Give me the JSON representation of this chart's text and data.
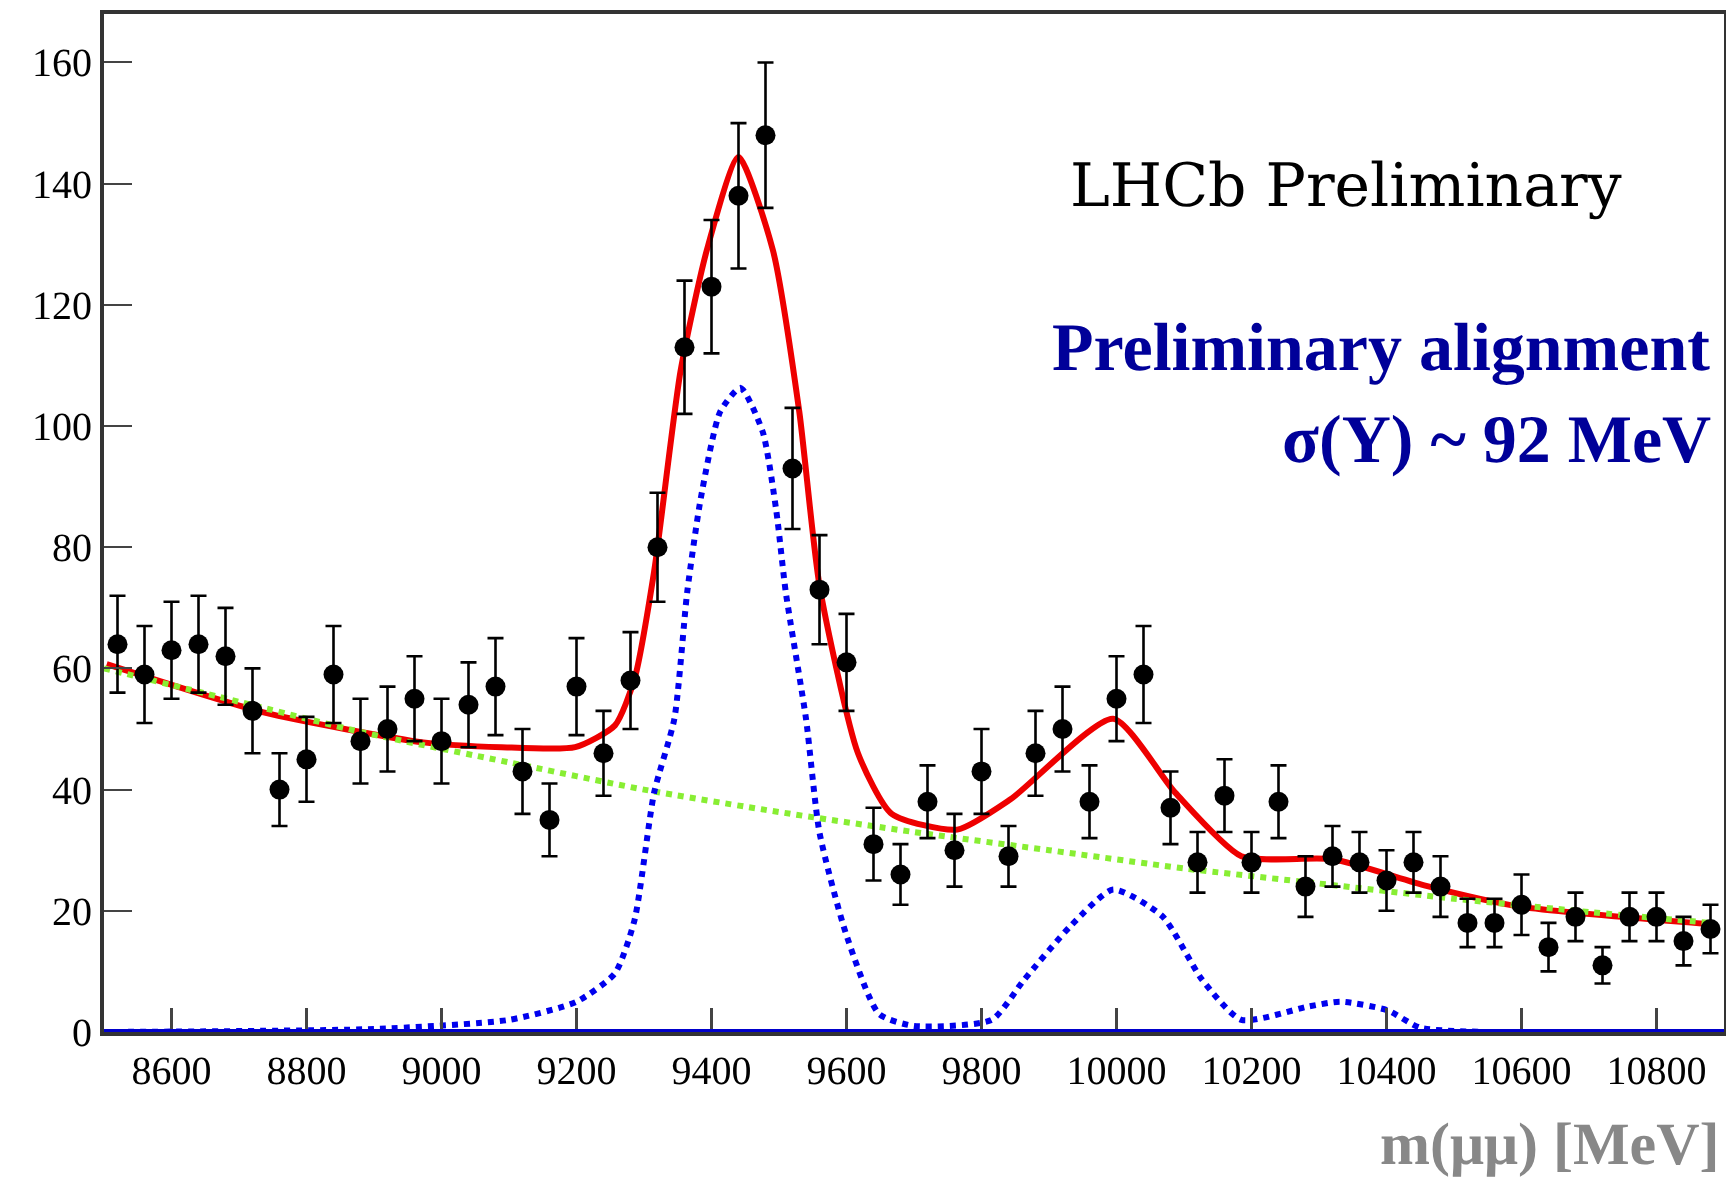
{
  "chart_data": {
    "type": "scatter",
    "xlabel": "m(μμ) [MeV]",
    "annotations": [
      "LHCb Preliminary",
      "Preliminary alignment",
      "σ(Υ) ~ 92 MeV"
    ],
    "xlim": [
      8500,
      10900
    ],
    "ylim": [
      0,
      168
    ],
    "xticks": [
      8600,
      8800,
      9000,
      9200,
      9400,
      9600,
      9800,
      10000,
      10200,
      10400,
      10600,
      10800
    ],
    "yticks": [
      0,
      20,
      40,
      60,
      80,
      100,
      120,
      140,
      160
    ],
    "grid": false,
    "ref_lines": [
      {
        "axis": "y",
        "value": 0,
        "color": "#0000cc",
        "line_style": "solid"
      }
    ],
    "series": [
      {
        "color": "#000000",
        "marker": "circle",
        "x": [
          8520,
          8560,
          8600,
          8640,
          8680,
          8720,
          8760,
          8800,
          8840,
          8880,
          8920,
          8960,
          9000,
          9040,
          9080,
          9120,
          9160,
          9200,
          9240,
          9280,
          9320,
          9360,
          9400,
          9440,
          9480,
          9520,
          9560,
          9600,
          9640,
          9680,
          9720,
          9760,
          9800,
          9840,
          9880,
          9920,
          9960,
          10000,
          10040,
          10080,
          10120,
          10160,
          10200,
          10240,
          10280,
          10320,
          10360,
          10400,
          10440,
          10480,
          10520,
          10560,
          10600,
          10640,
          10680,
          10720,
          10760,
          10800,
          10840,
          10880
        ],
        "values": [
          64,
          59,
          63,
          64,
          62,
          53,
          40,
          45,
          59,
          48,
          50,
          55,
          48,
          54,
          57,
          43,
          35,
          57,
          46,
          58,
          80,
          113,
          123,
          138,
          148,
          93,
          73,
          61,
          31,
          26,
          38,
          30,
          43,
          29,
          46,
          50,
          38,
          55,
          59,
          37,
          28,
          39,
          28,
          38,
          24,
          29,
          28,
          25,
          28,
          24,
          18,
          18,
          21,
          14,
          19,
          11,
          19,
          19,
          15,
          17
        ],
        "errors": [
          8,
          8,
          8,
          8,
          8,
          7,
          6,
          7,
          8,
          7,
          7,
          7,
          7,
          7,
          8,
          7,
          6,
          8,
          7,
          8,
          9,
          11,
          11,
          12,
          12,
          10,
          9,
          8,
          6,
          5,
          6,
          6,
          7,
          5,
          7,
          7,
          6,
          7,
          8,
          6,
          5,
          6,
          5,
          6,
          5,
          5,
          5,
          5,
          5,
          5,
          4,
          4,
          5,
          4,
          4,
          3,
          4,
          4,
          4,
          4
        ]
      },
      {
        "type": "line",
        "color": "#ee0000",
        "line_style": "solid",
        "marker": "none",
        "x": [
          8504,
          8738,
          8973,
          9089,
          9198,
          9257,
          9286,
          9315,
          9354,
          9393,
          9440,
          9491,
          9530,
          9560,
          9617,
          9667,
          9764,
          9843,
          9995,
          10087,
          10185,
          10321,
          10459,
          10596,
          10878
        ],
        "values": [
          60.7,
          52.7,
          47.8,
          47,
          47,
          50.6,
          58.3,
          76,
          109,
          129,
          144.4,
          129,
          102.4,
          73.7,
          46,
          36,
          33.4,
          38.4,
          51.7,
          39.5,
          29,
          28.5,
          24.1,
          20.7,
          17.8
        ]
      },
      {
        "type": "line",
        "color": "#88ee33",
        "line_style": "dotted",
        "marker": "none",
        "x": [
          8500,
          8700,
          8885,
          9100,
          9300,
          9500,
          9700,
          9900,
          10100,
          10300,
          10500,
          10700,
          10880
        ],
        "values": [
          60,
          54.5,
          49.4,
          44.5,
          40,
          36.3,
          33,
          30,
          27,
          24.5,
          22,
          19.8,
          18
        ]
      },
      {
        "type": "line",
        "color": "#0000ee",
        "line_style": "dotted",
        "marker": "none",
        "x": [
          8500,
          8900,
          9100,
          9200,
          9257,
          9286,
          9315,
          9345,
          9364,
          9384,
          9413,
          9443,
          9476,
          9496,
          9510,
          9540,
          9560,
          9599,
          9648,
          9700,
          9815,
          9863,
          9932,
          9995,
          10068,
          10127,
          10185,
          10284,
          10332,
          10401,
          10450,
          10550,
          10900
        ],
        "values": [
          0,
          0.5,
          2,
          5,
          9.7,
          18.5,
          39.5,
          51.7,
          72.6,
          88,
          102.4,
          106.3,
          99,
          86,
          72.6,
          51.7,
          32.9,
          16.3,
          3,
          1,
          2,
          8.6,
          17.5,
          23.5,
          19.1,
          8.6,
          2,
          4.2,
          5,
          3.6,
          0.7,
          0,
          0
        ]
      }
    ]
  }
}
